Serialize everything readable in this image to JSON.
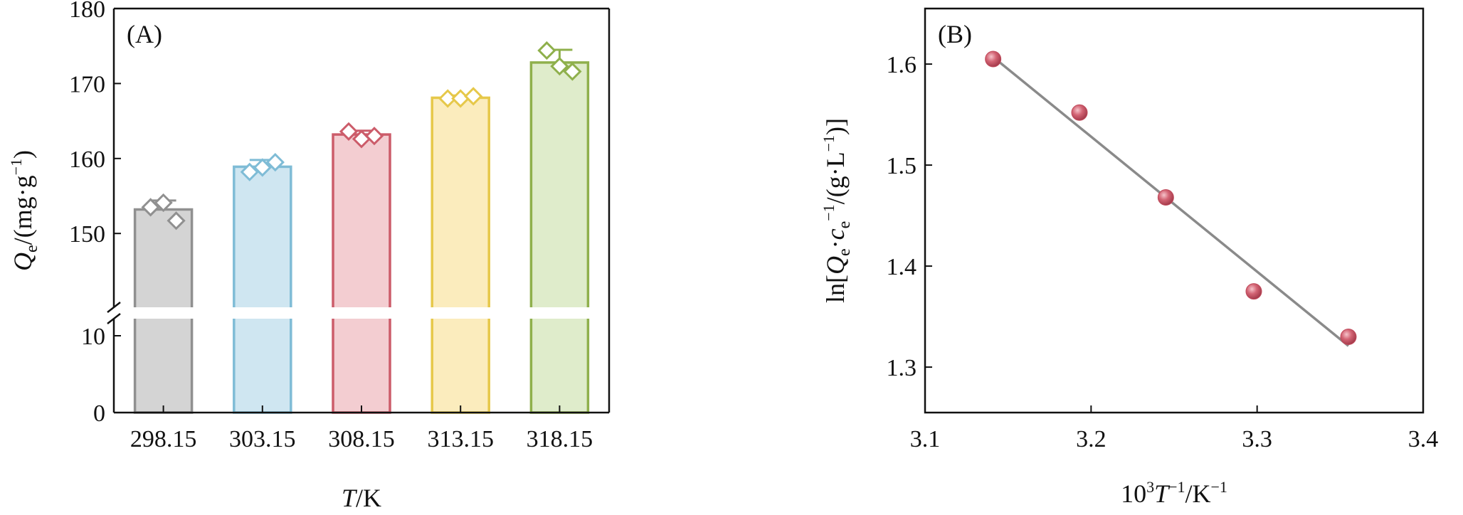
{
  "chart_data": [
    {
      "type": "bar",
      "panel_label": "(A)",
      "xlabel": {
        "italic": "T",
        "rest": "/K"
      },
      "ylabel": {
        "italic": "Q",
        "sub": "e",
        "rest": "/(mg·g",
        "sup": "−1",
        "end": ")"
      },
      "categories": [
        "298.15",
        "303.15",
        "308.15",
        "313.15",
        "318.15"
      ],
      "values": [
        153.2,
        158.9,
        163.2,
        168.1,
        172.8
      ],
      "errors": [
        1.2,
        0.9,
        0.5,
        0.3,
        1.7
      ],
      "points": [
        [
          153.5,
          154.1,
          151.7
        ],
        [
          158.2,
          158.8,
          159.5
        ],
        [
          163.6,
          162.6,
          163.0
        ],
        [
          168.0,
          168.0,
          168.3
        ],
        [
          174.4,
          172.3,
          171.6
        ]
      ],
      "colors": [
        {
          "edge": "#909090",
          "fill": "#d4d4d4"
        },
        {
          "edge": "#7fbcd6",
          "fill": "#cfe6f1"
        },
        {
          "edge": "#cc5c6a",
          "fill": "#f3cdd1"
        },
        {
          "edge": "#e6c84a",
          "fill": "#fbecbd"
        },
        {
          "edge": "#8fb04c",
          "fill": "#dfeccb"
        }
      ],
      "yticks_upper": [
        "150",
        "160",
        "170",
        "180"
      ],
      "yticks_lower": [
        "0",
        "10"
      ],
      "ylim_upper": [
        143,
        180
      ],
      "ylim_lower": [
        0,
        10
      ],
      "axis_break": true
    },
    {
      "type": "scatter",
      "panel_label": "(B)",
      "xlabel": {
        "base": "10",
        "sup1": "3",
        "italic": "T",
        "sup2": "−1",
        "mid": "/K",
        "sup3": "−1"
      },
      "ylabel": {
        "pre": "ln[",
        "italic1": "Q",
        "sub1": "e",
        "dot": "·",
        "italic2": "c",
        "sub2": "e",
        "sup1": "−1",
        "mid": "/(g·L",
        "sup2": "−1",
        "end": ")]"
      },
      "x": [
        3.141,
        3.193,
        3.245,
        3.298,
        3.355
      ],
      "y": [
        1.605,
        1.552,
        1.468,
        1.375,
        1.33
      ],
      "fit": {
        "x": [
          3.141,
          3.355
        ],
        "y": [
          1.607,
          1.321
        ]
      },
      "xticks": [
        "3.1",
        "3.2",
        "3.3",
        "3.4"
      ],
      "yticks": [
        "1.3",
        "1.4",
        "1.5",
        "1.6"
      ],
      "xlim": [
        3.1,
        3.4
      ],
      "ylim": [
        1.255,
        1.655
      ],
      "point_color": "#c04a5b",
      "line_color": "#8a8a8a"
    }
  ]
}
